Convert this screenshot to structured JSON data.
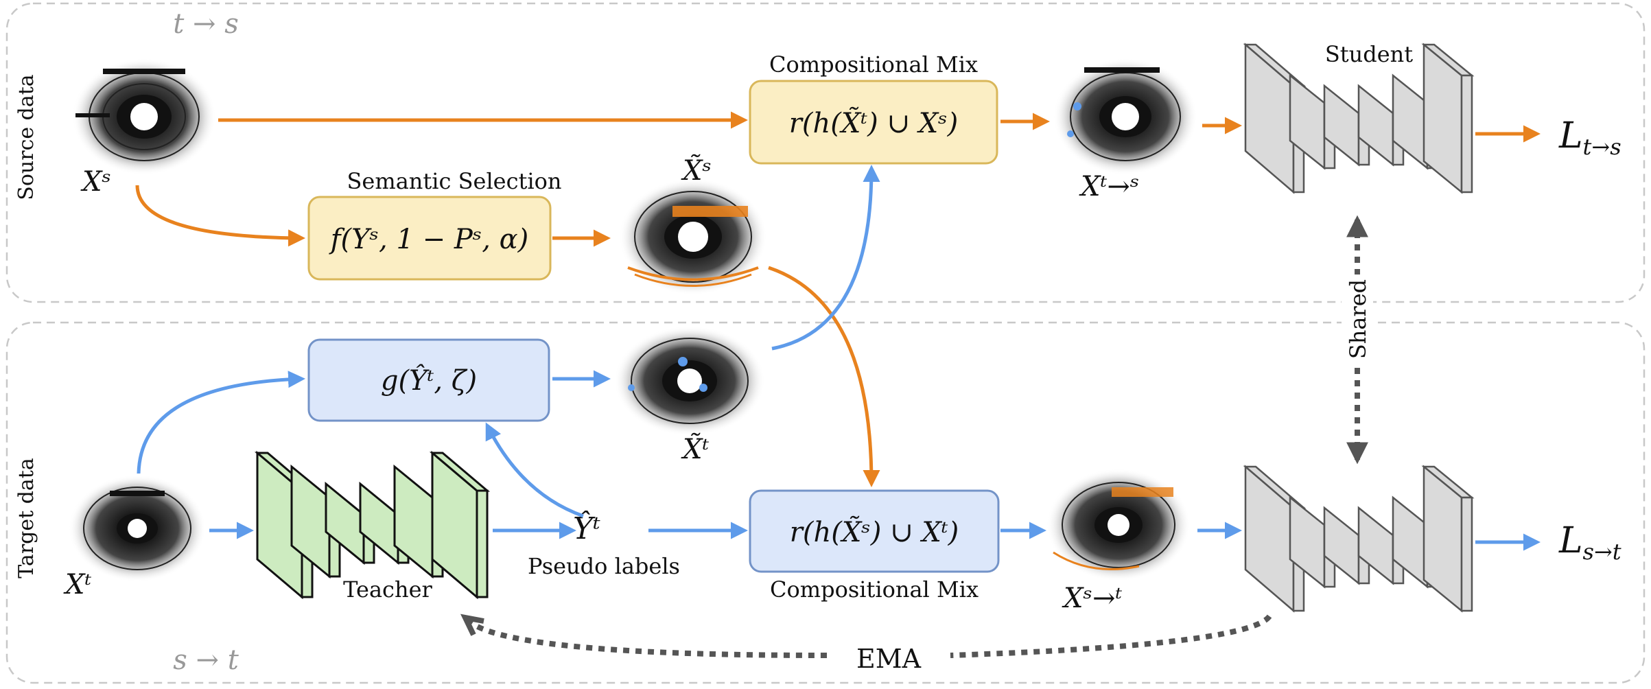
{
  "panels": {
    "top_direction": "t → s",
    "bottom_direction": "s → t",
    "source_label": "Source data",
    "target_label": "Target data"
  },
  "boxes": {
    "comp_mix_top_title": "Compositional Mix",
    "comp_mix_top_formula": "r(h(X̃ᵗ) ∪ Xˢ)",
    "semantic_selection_title": "Semantic Selection",
    "semantic_selection_formula": "f(Yˢ, 1 − Pˢ, α)",
    "g_formula": "g(Ŷᵗ, ζ)",
    "comp_mix_bottom_formula": "r(h(X̃ˢ) ∪ Xᵗ)",
    "comp_mix_bottom_title": "Compositional Mix"
  },
  "symbols": {
    "xs": "Xˢ",
    "xs_tilde": "X̃ˢ",
    "xt_tilde": "X̃ᵗ",
    "xt": "Xᵗ",
    "x_t_to_s": "Xᵗ→ˢ",
    "x_s_to_t": "Xˢ→ᵗ",
    "y_hat_t": "Ŷᵗ"
  },
  "labels": {
    "student": "Student",
    "teacher": "Teacher",
    "pseudo_labels": "Pseudo labels",
    "shared": "Shared",
    "ema": "EMA",
    "loss_top": "L",
    "loss_top_sub": "t→s",
    "loss_bottom": "L",
    "loss_bottom_sub": "s→t"
  },
  "colors": {
    "orange": "#E8821E",
    "blue": "#5E9BEA",
    "yellow_fill": "#FBEEC4",
    "yellow_stroke": "#D9B75A",
    "blue_fill": "#DCE7FA",
    "blue_stroke": "#7393C8",
    "teacher_fill": "#CDEBC0",
    "network_fill": "#DADADA",
    "dashed_gray": "#C8C8C8"
  }
}
